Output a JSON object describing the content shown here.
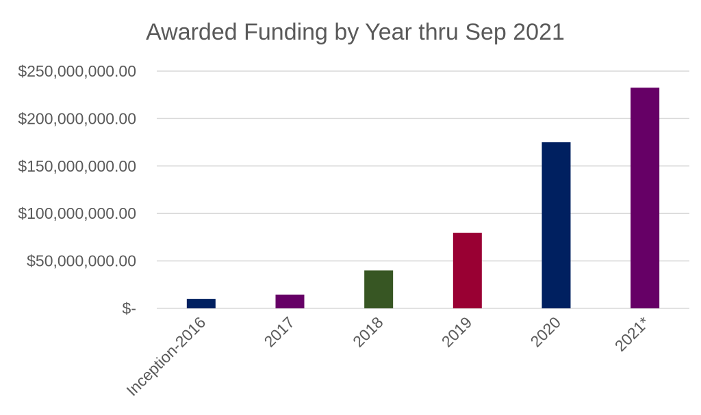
{
  "chart_data": {
    "type": "bar",
    "title": "Awarded Funding by Year thru Sep 2021",
    "xlabel": "",
    "ylabel": "",
    "categories": [
      "Inception-2016",
      "2017",
      "2018",
      "2019",
      "2020",
      "2021*"
    ],
    "values": [
      10000000,
      14500000,
      40000000,
      79500000,
      175000000,
      232500000
    ],
    "colors": [
      "#002060",
      "#660066",
      "#375623",
      "#990033",
      "#002060",
      "#660066"
    ],
    "ylim": [
      0,
      250000000
    ],
    "yticks": [
      0,
      50000000,
      100000000,
      150000000,
      200000000,
      250000000
    ],
    "ytick_labels": [
      "$-",
      "$50,000,000.00",
      "$100,000,000.00",
      "$150,000,000.00",
      "$200,000,000.00",
      "$250,000,000.00"
    ],
    "grid": true,
    "legend": "none"
  }
}
